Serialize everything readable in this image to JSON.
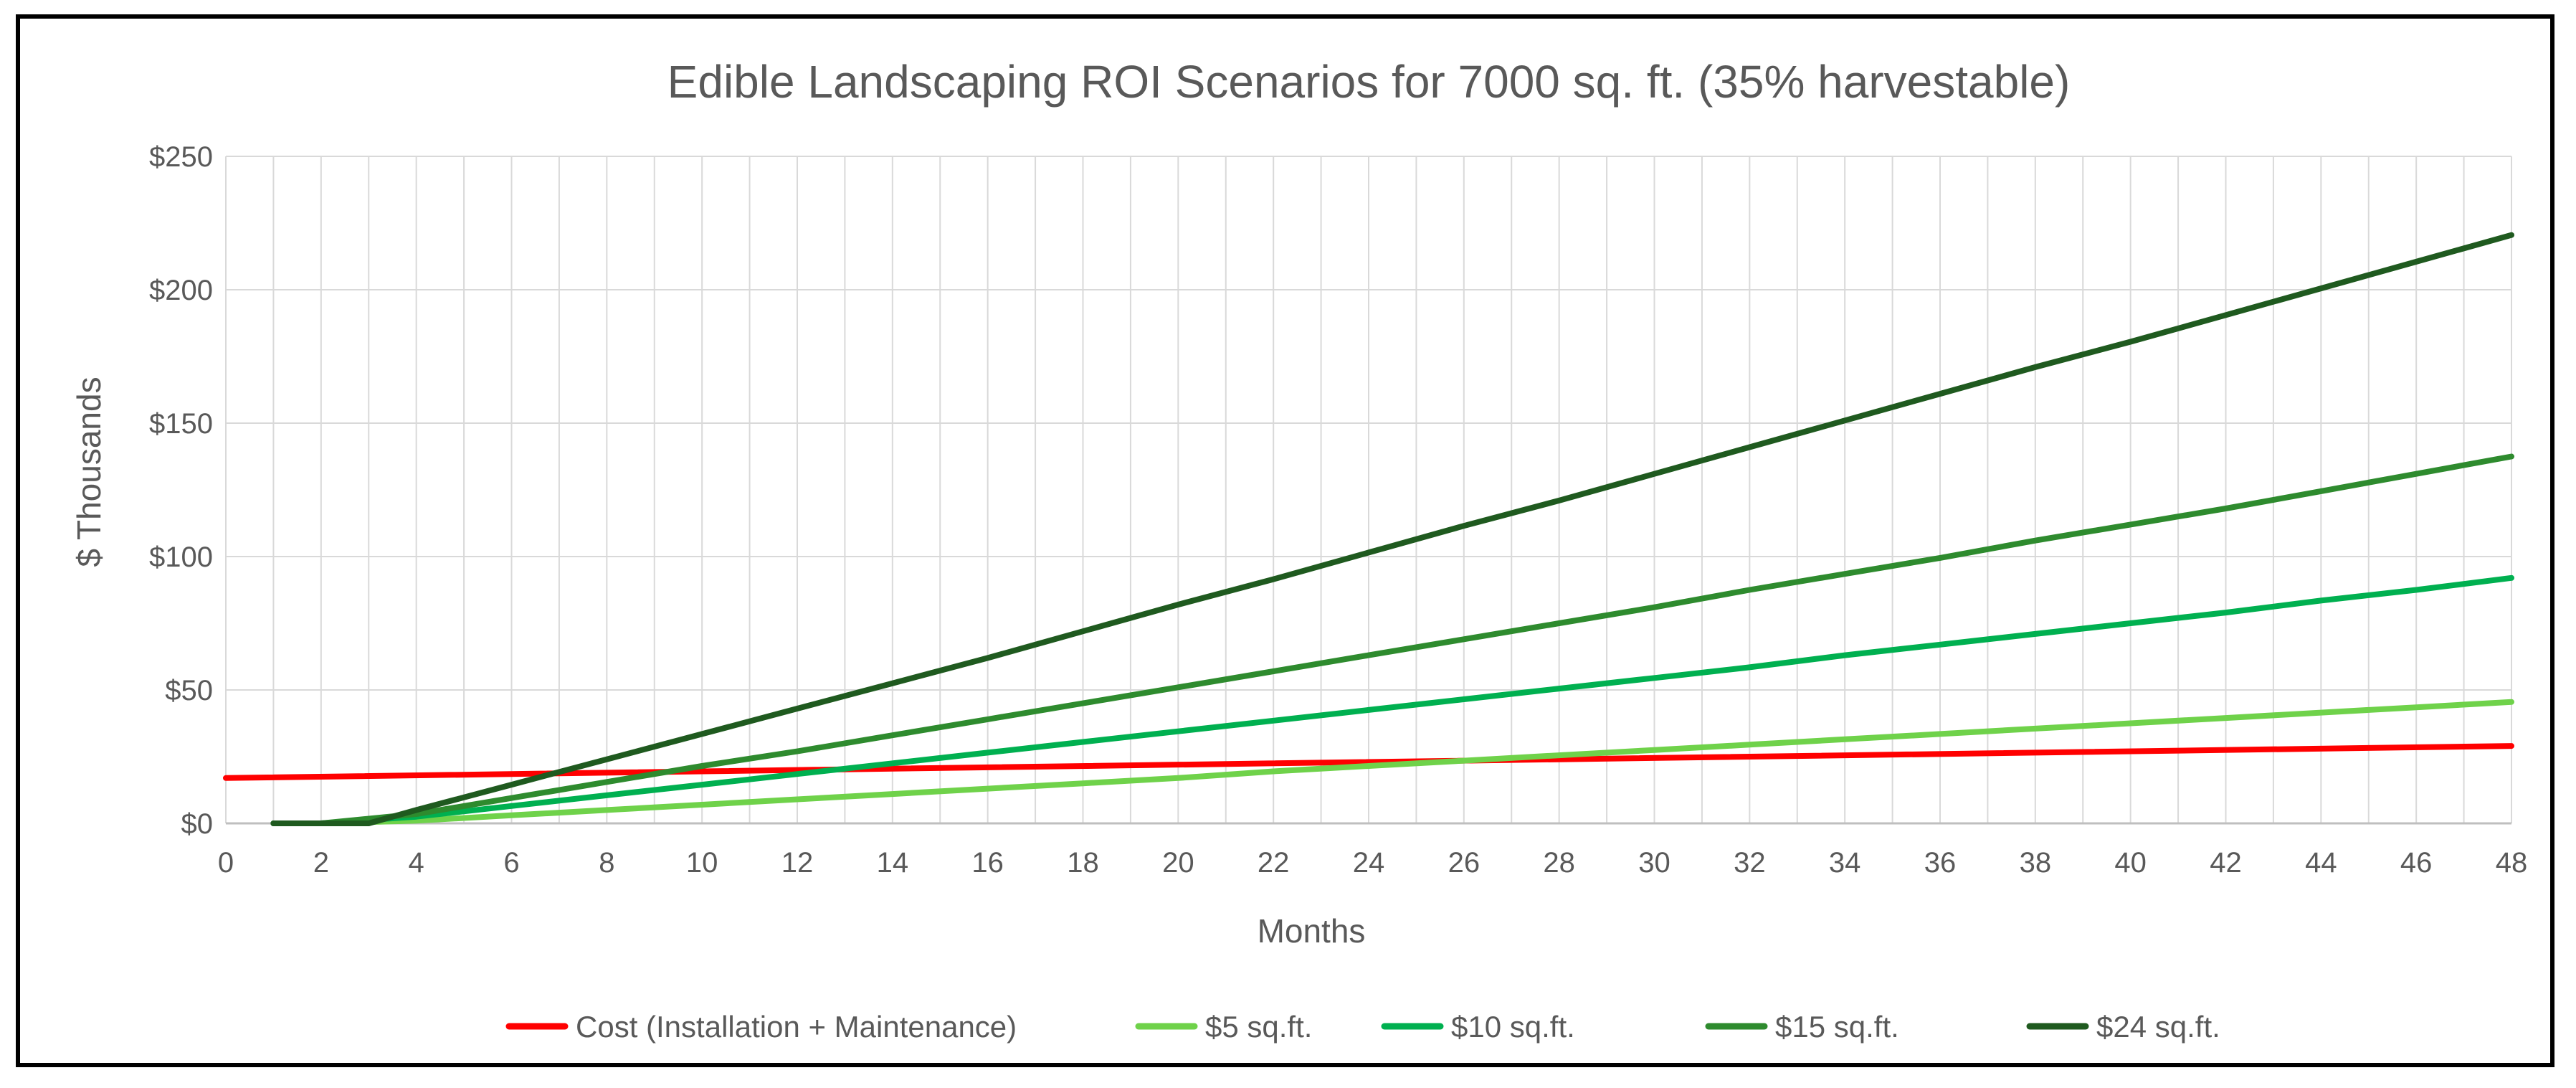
{
  "chart_data": {
    "type": "line",
    "title": "Edible Landscaping ROI Scenarios for 7000 sq. ft. (35% harvestable)",
    "xlabel": "Months",
    "ylabel": "$ Thousands",
    "xlim": [
      0,
      48
    ],
    "ylim": [
      0,
      250
    ],
    "x_ticks": [
      "0",
      "2",
      "4",
      "6",
      "8",
      "10",
      "12",
      "14",
      "16",
      "18",
      "20",
      "22",
      "24",
      "26",
      "28",
      "30",
      "32",
      "34",
      "36",
      "38",
      "40",
      "42",
      "44",
      "46",
      "48"
    ],
    "y_ticks": [
      {
        "value": 0,
        "label": "$0"
      },
      {
        "value": 50,
        "label": "$50"
      },
      {
        "value": 100,
        "label": "$100"
      },
      {
        "value": 150,
        "label": "$150"
      },
      {
        "value": 200,
        "label": "$200"
      },
      {
        "value": 250,
        "label": "$250"
      }
    ],
    "grid": true,
    "legend_position": "bottom",
    "series": [
      {
        "name": "Cost (Installation + Maintenance)",
        "color": "#ff0000",
        "x": [
          0,
          48
        ],
        "y": [
          17,
          29
        ]
      },
      {
        "name": "$5 sq.ft.",
        "color": "#6fd24a",
        "x": [
          1,
          2,
          4,
          6,
          8,
          10,
          12,
          14,
          16,
          18,
          20,
          22,
          24,
          26,
          28,
          30,
          32,
          34,
          36,
          38,
          40,
          42,
          44,
          46,
          48
        ],
        "y": [
          0,
          0,
          1,
          3,
          5,
          7,
          9,
          11,
          13,
          15,
          17,
          19.5,
          21.5,
          23.5,
          25.5,
          27.5,
          29.5,
          31.5,
          33.5,
          35.5,
          37.5,
          39.5,
          41.5,
          43.5,
          45.5
        ]
      },
      {
        "name": "$10 sq.ft.",
        "color": "#00b050",
        "x": [
          1,
          2,
          4,
          6,
          8,
          10,
          12,
          14,
          16,
          18,
          20,
          22,
          24,
          26,
          28,
          30,
          32,
          34,
          36,
          38,
          40,
          42,
          44,
          46,
          48
        ],
        "y": [
          0,
          0,
          2.5,
          6.5,
          10.5,
          14.5,
          18.5,
          22.5,
          26.5,
          30.5,
          34.5,
          38.5,
          42.5,
          46.5,
          50.5,
          54.5,
          58.5,
          63,
          67,
          71,
          75,
          79,
          83.5,
          87.5,
          92
        ]
      },
      {
        "name": "$15 sq.ft.",
        "color": "#2e8b2e",
        "x": [
          1,
          2,
          4,
          6,
          8,
          10,
          12,
          14,
          16,
          18,
          20,
          22,
          24,
          26,
          28,
          30,
          32,
          34,
          36,
          38,
          40,
          42,
          44,
          46,
          48
        ],
        "y": [
          0,
          0,
          3.5,
          9.5,
          15.5,
          21.5,
          27,
          33,
          39,
          45,
          51,
          57,
          63,
          69,
          75,
          81,
          87.5,
          93.5,
          99.5,
          106,
          112,
          118,
          124.5,
          131,
          137.5
        ]
      },
      {
        "name": "$24 sq.ft.",
        "color": "#1f5a1f",
        "x": [
          1,
          2,
          3,
          4,
          6,
          8,
          10,
          12,
          14,
          16,
          18,
          20,
          22,
          24,
          26,
          28,
          30,
          32,
          34,
          36,
          38,
          40,
          42,
          44,
          46,
          48
        ],
        "y": [
          0,
          0,
          0,
          5,
          14.5,
          24,
          33.5,
          43,
          52.5,
          62,
          72,
          82,
          91.5,
          101.5,
          111.5,
          121,
          131,
          141,
          151,
          161,
          171,
          180.5,
          190.5,
          200.5,
          210.5,
          220.5
        ]
      }
    ]
  }
}
